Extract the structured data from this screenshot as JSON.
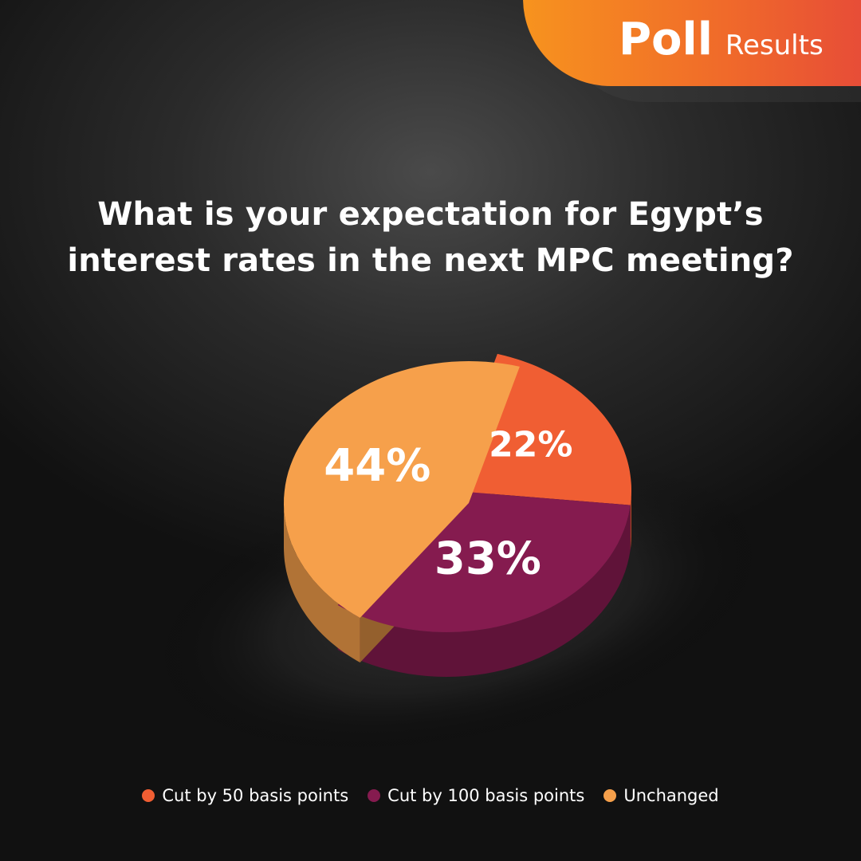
{
  "header": {
    "bold": "Poll",
    "light": "Results"
  },
  "question": "What is your expectation for Egypt’s interest rates in the next MPC meeting?",
  "colors": {
    "orange_red": "#f05e33",
    "plum": "#851b4f",
    "light_orange": "#f6a04b",
    "badge_start": "#f7931e",
    "badge_end": "#e5473a"
  },
  "chart_data": {
    "type": "pie",
    "title": "What is your expectation for Egypt’s interest rates in the next MPC meeting?",
    "categories": [
      "Cut by 50 basis points",
      "Cut by 100 basis points",
      "Unchanged"
    ],
    "values": [
      22,
      33,
      44
    ],
    "labels": [
      "22%",
      "33%",
      "44%"
    ],
    "series": [
      {
        "name": "Cut by 50 basis points",
        "value": 22,
        "label": "22%",
        "color": "#f05e33"
      },
      {
        "name": "Cut by 100 basis points",
        "value": 33,
        "label": "33%",
        "color": "#851b4f"
      },
      {
        "name": "Unchanged",
        "value": 44,
        "label": "44%",
        "color": "#f6a04b"
      }
    ],
    "legend_position": "bottom",
    "style": "3d-exploded"
  }
}
